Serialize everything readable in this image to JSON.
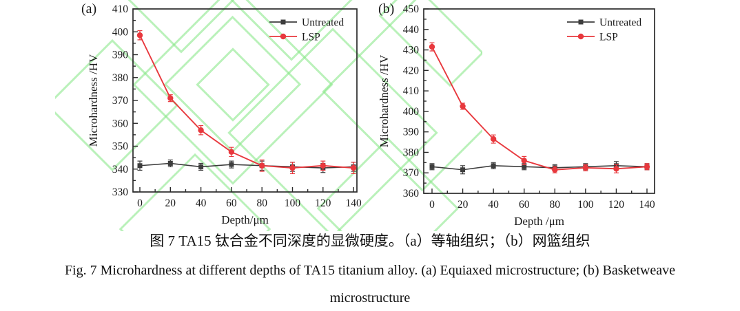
{
  "figure": {
    "captions": {
      "zh": "图 7 TA15 钛合金不同深度的显微硬度。（a）等轴组织；（b）网篮组织",
      "en_line1": "Fig. 7 Microhardness at different depths of TA15 titanium alloy. (a) Equiaxed microstructure; (b) Basketweave",
      "en_line2": "microstructure"
    },
    "colors": {
      "untreated": "#3d3d3d",
      "lsp": "#e8383d",
      "axis": "#2b2b2b",
      "watermark_green": "#82e682"
    }
  },
  "chart_data": [
    {
      "type": "line",
      "panel_label": "(a)",
      "title": "",
      "xlabel": "Depth/μm",
      "ylabel": "Microhardness /HV",
      "x": [
        0,
        20,
        40,
        60,
        80,
        100,
        120,
        140
      ],
      "xlim": [
        0,
        140
      ],
      "ylim": [
        330,
        410
      ],
      "ytick_step": 10,
      "ytick_minor": 5,
      "xtick_step": 20,
      "xtick_minor": 10,
      "grid": false,
      "legend_position": "top-right",
      "legend": [
        "Untreated",
        "LSP"
      ],
      "series": [
        {
          "name": "Untreated",
          "color": "#3d3d3d",
          "marker": "square",
          "values": [
            341.5,
            342.5,
            341,
            342,
            341.5,
            341,
            340.5,
            341
          ],
          "errors": [
            2,
            1.5,
            1.5,
            1.5,
            2,
            2,
            2,
            2
          ]
        },
        {
          "name": "LSP",
          "color": "#e8383d",
          "marker": "circle",
          "values": [
            398.5,
            371,
            357,
            347.5,
            341.5,
            340.5,
            341.5,
            340.5
          ],
          "errors": [
            2,
            1.5,
            2,
            2,
            2.5,
            2.5,
            2,
            2.5
          ]
        }
      ]
    },
    {
      "type": "line",
      "panel_label": "(b)",
      "title": "",
      "xlabel": "Depth /μm",
      "ylabel": "Microhardness /HV",
      "x": [
        0,
        20,
        40,
        60,
        80,
        100,
        120,
        140
      ],
      "xlim": [
        0,
        140
      ],
      "ylim": [
        360,
        450
      ],
      "ytick_step": 10,
      "ytick_minor": 5,
      "xtick_step": 20,
      "xtick_minor": 10,
      "grid": false,
      "legend_position": "top-right",
      "legend": [
        "Untreated",
        "LSP"
      ],
      "series": [
        {
          "name": "Untreated",
          "color": "#3d3d3d",
          "marker": "square",
          "values": [
            373,
            371.5,
            373.5,
            373,
            372.5,
            373,
            373.5,
            373
          ],
          "errors": [
            1.5,
            2,
            1.5,
            1.5,
            1.5,
            1.5,
            2,
            1.5
          ]
        },
        {
          "name": "LSP",
          "color": "#e8383d",
          "marker": "circle",
          "values": [
            431.5,
            402.5,
            386.5,
            376,
            371.5,
            372.5,
            372,
            373
          ],
          "errors": [
            2,
            1.5,
            2,
            2,
            1.5,
            1.5,
            2,
            1.5
          ]
        }
      ]
    }
  ]
}
